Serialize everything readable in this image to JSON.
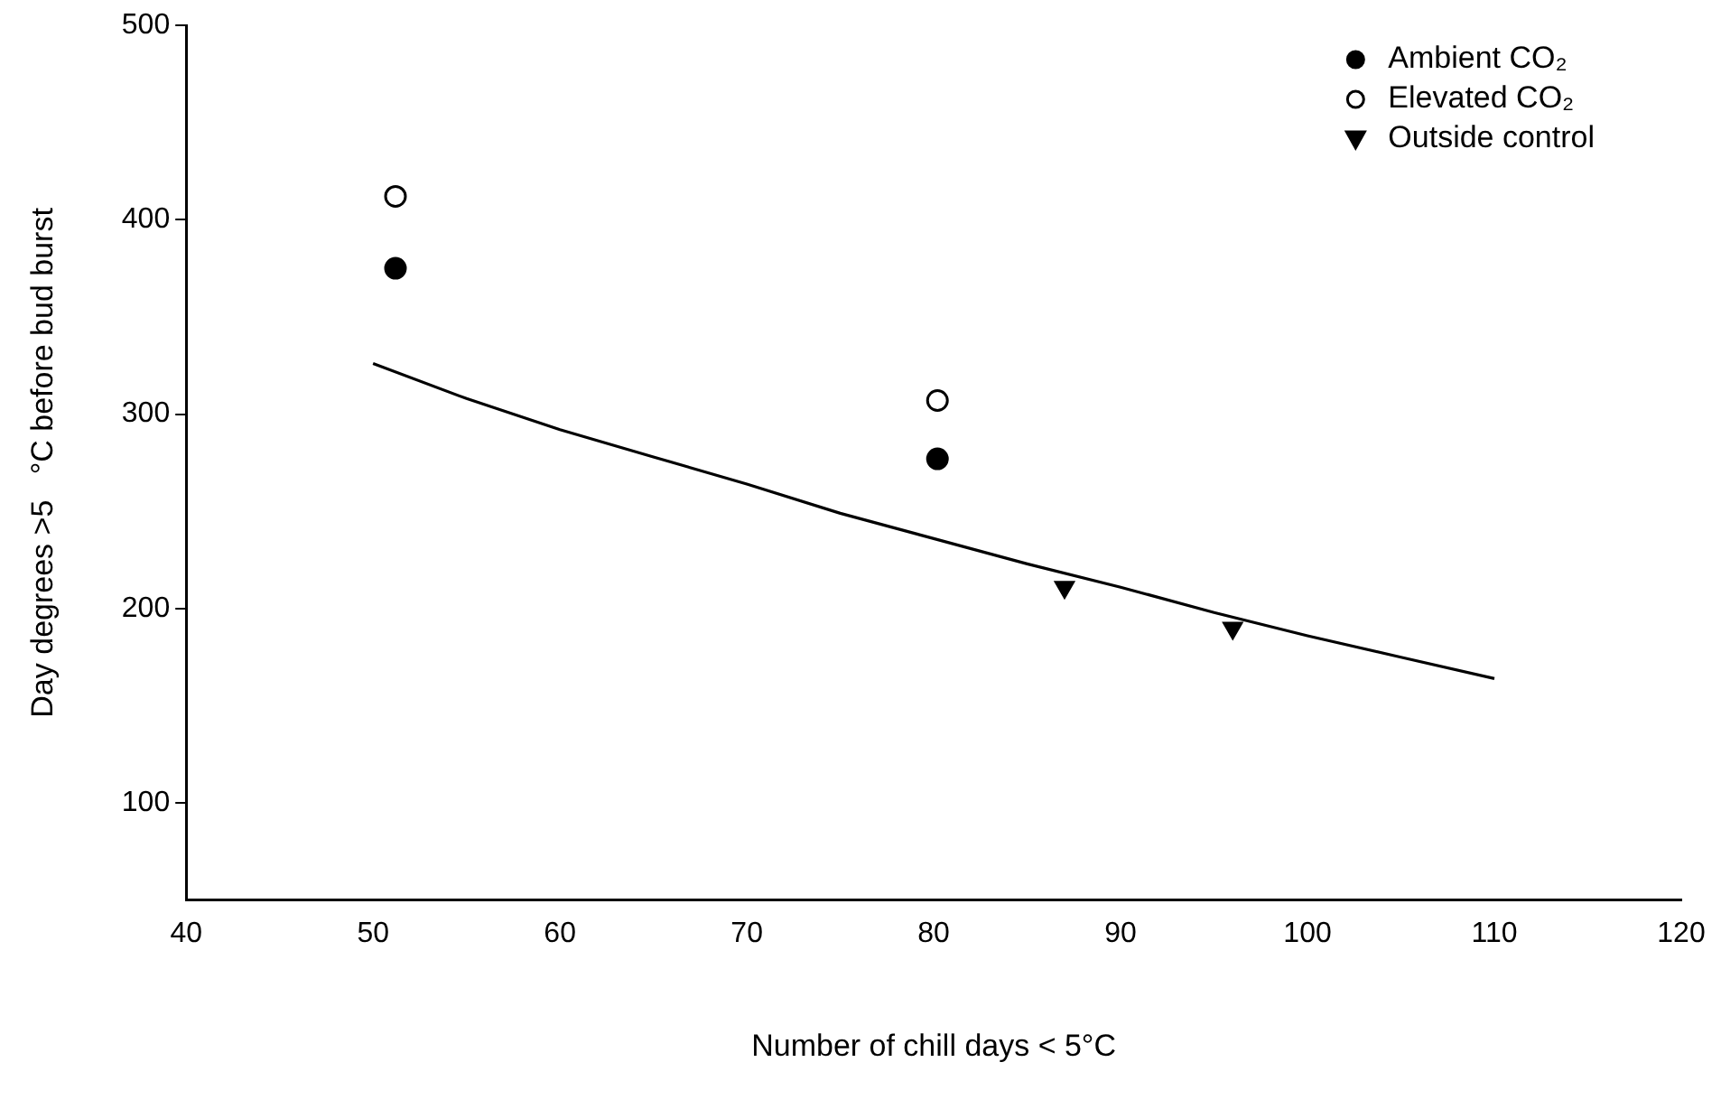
{
  "chart_data": {
    "type": "scatter",
    "xlabel": "Number of chill days < 5°C",
    "ylabel": "Day degrees >5   °C before bud burst",
    "xlim": [
      40,
      120
    ],
    "xticks": [
      40,
      50,
      60,
      70,
      80,
      90,
      100,
      110,
      120
    ],
    "ylim": [
      50,
      500
    ],
    "yticks": [
      100,
      200,
      300,
      400,
      500
    ],
    "grid": false,
    "legend": "top right",
    "series": [
      {
        "name": "Ambient CO₂",
        "color": "#000000",
        "marker": "circle",
        "x": [
          51.2,
          80.2
        ],
        "values": [
          375,
          277
        ]
      },
      {
        "name": "Elevated CO₂",
        "color": "#ffffff",
        "marker": "circle",
        "x": [
          51.2,
          80.2
        ],
        "values": [
          412,
          307
        ]
      },
      {
        "name": "Outside control",
        "color": "#000000",
        "marker": "triangle",
        "x": [
          87,
          96
        ],
        "values": [
          211,
          190
        ]
      },
      {
        "type": "line",
        "color": "#000000",
        "marker": "none",
        "line_style": "solid",
        "x": [
          50,
          55,
          60,
          65,
          70,
          75,
          80,
          85,
          90,
          95,
          100,
          105,
          110
        ],
        "values": [
          326,
          308,
          292,
          278,
          264,
          249,
          236,
          223,
          211,
          198,
          186,
          175,
          164
        ]
      }
    ]
  }
}
